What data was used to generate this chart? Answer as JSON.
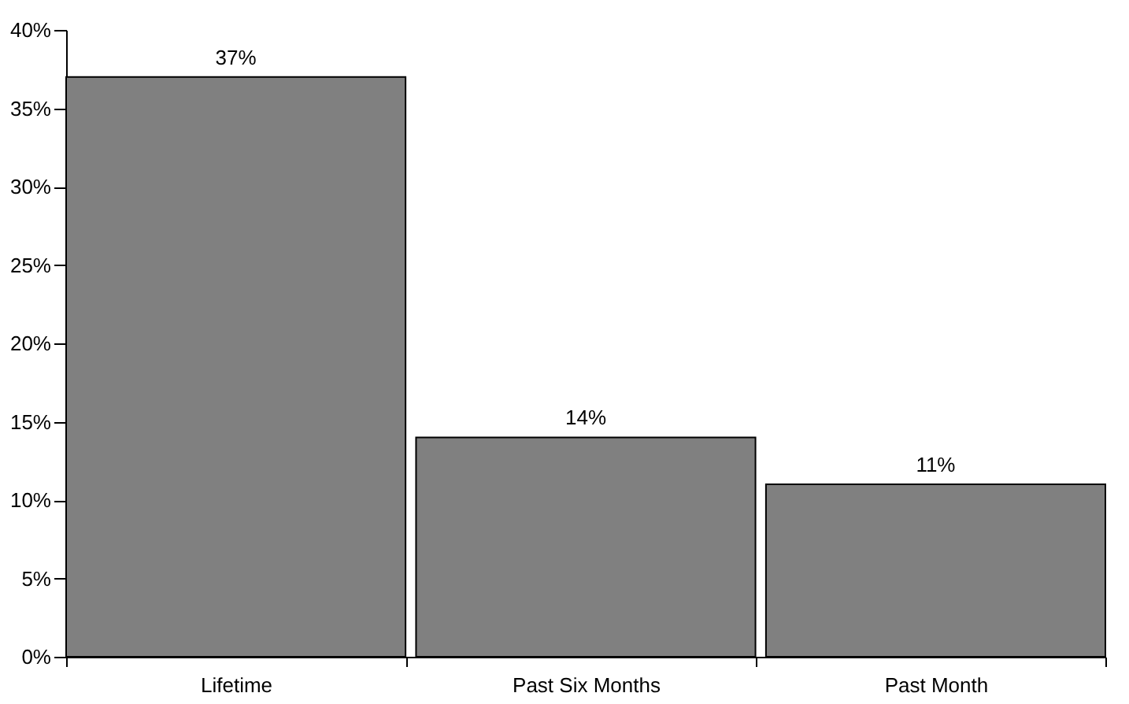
{
  "chart_data": {
    "type": "bar",
    "categories": [
      "Lifetime",
      "Past Six Months",
      "Past Month"
    ],
    "values": [
      37,
      14,
      11
    ],
    "color": "#808080",
    "value_labels": [
      "37%",
      "14%",
      "11%"
    ],
    "ylim": [
      0,
      40
    ],
    "yticks": [
      {
        "value": 0,
        "label": "0%"
      },
      {
        "value": 5,
        "label": "5%"
      },
      {
        "value": 10,
        "label": "10%"
      },
      {
        "value": 15,
        "label": "15%"
      },
      {
        "value": 20,
        "label": "20%"
      },
      {
        "value": 25,
        "label": "25%"
      },
      {
        "value": 30,
        "label": "30%"
      },
      {
        "value": 35,
        "label": "35%"
      },
      {
        "value": 40,
        "label": "40%"
      }
    ],
    "grid": false
  }
}
